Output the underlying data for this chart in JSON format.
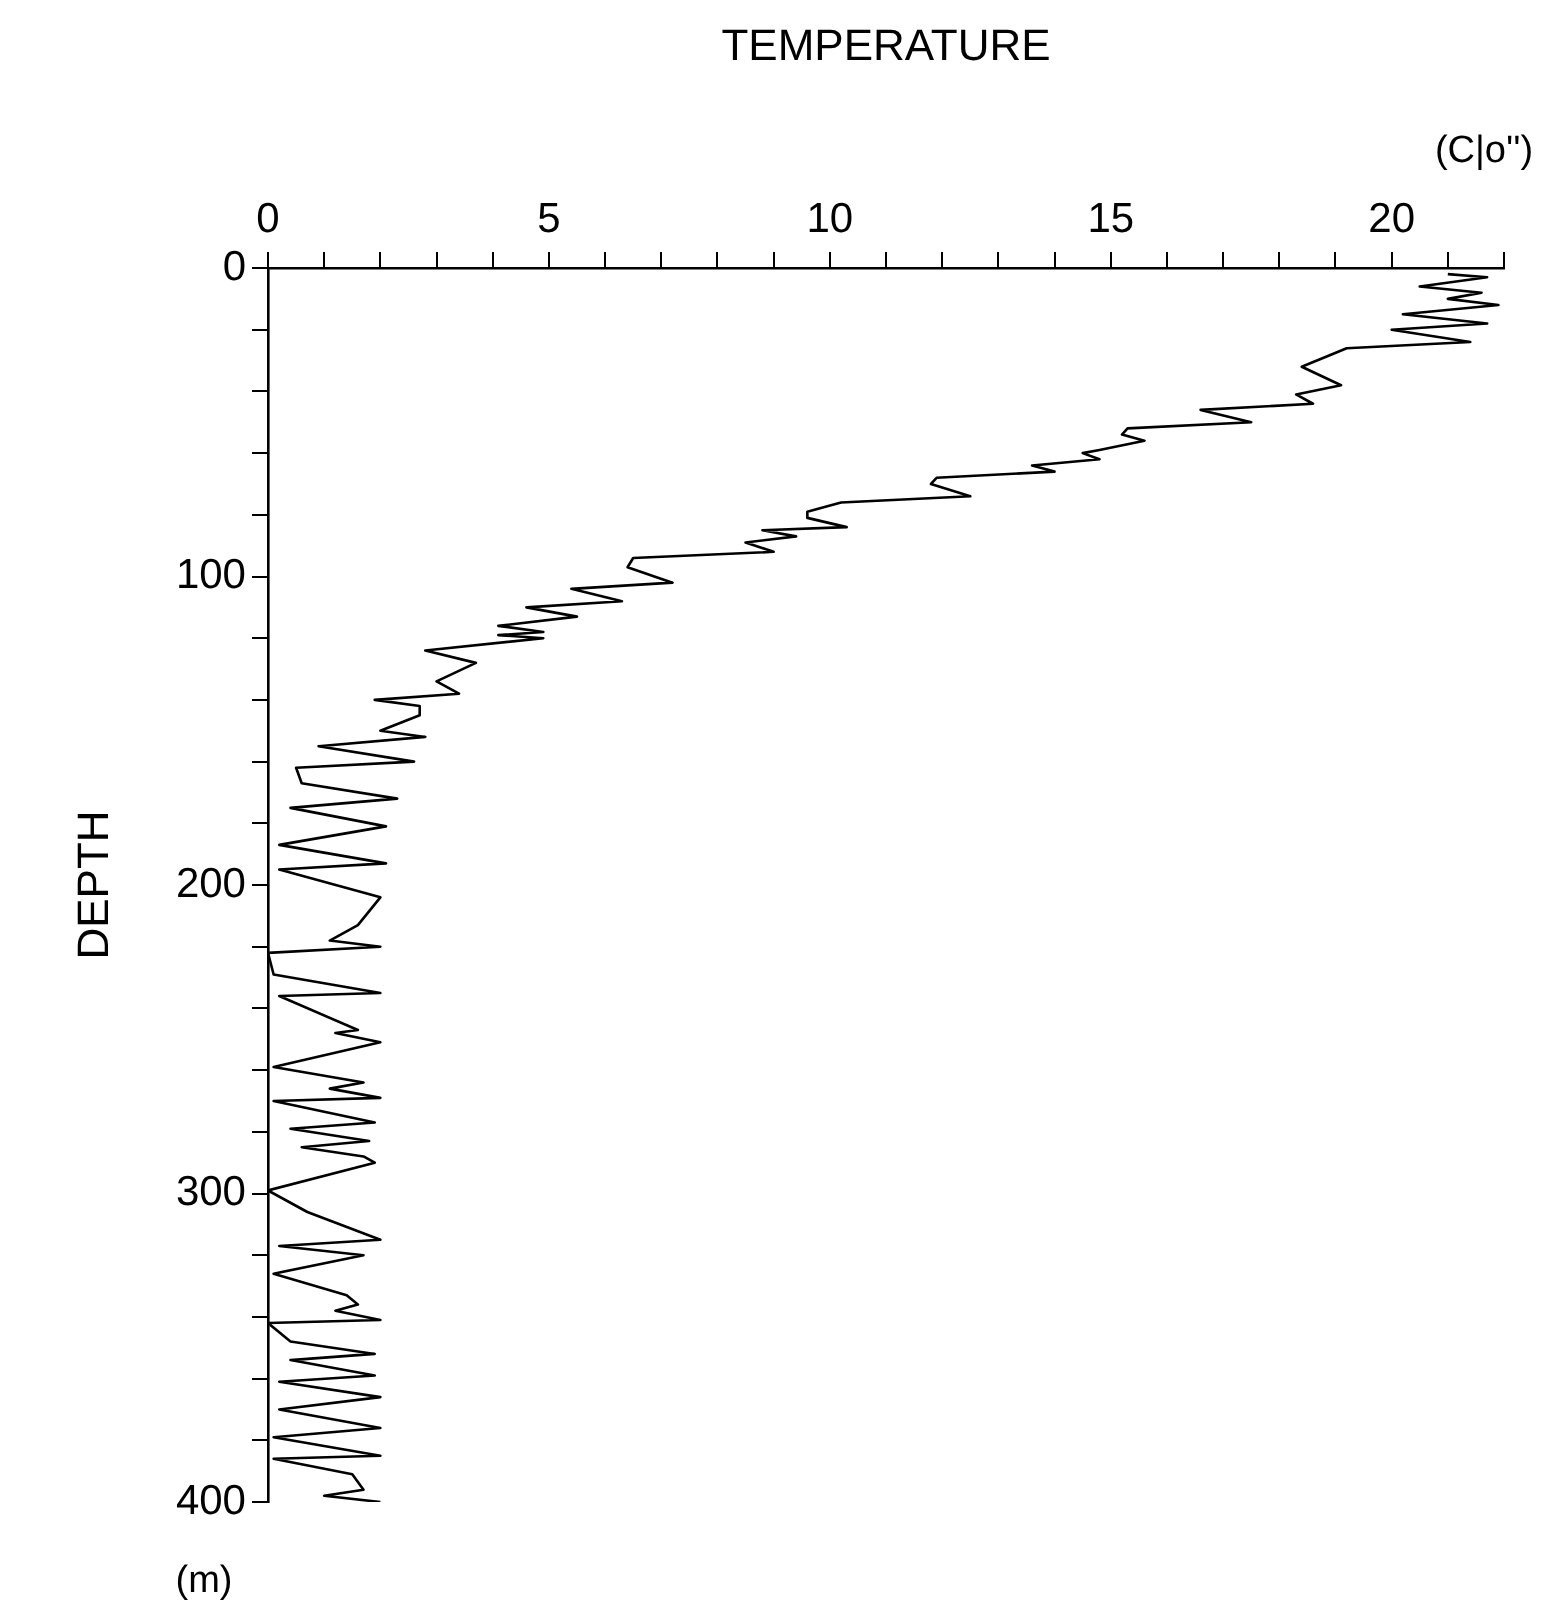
{
  "chart_data": {
    "type": "line",
    "xlabel": "TEMPERATURE",
    "ylabel": "DEPTH",
    "annotations": [
      "(C|o'')",
      "(m)"
    ],
    "xlim": [
      0,
      22
    ],
    "xticks": [
      0,
      {
        "value": 1,
        "label": null
      },
      {
        "value": 2,
        "label": null
      },
      {
        "value": 3,
        "label": null
      },
      {
        "value": 4,
        "label": null
      },
      5,
      {
        "value": 6,
        "label": null
      },
      {
        "value": 7,
        "label": null
      },
      {
        "value": 8,
        "label": null
      },
      {
        "value": 9,
        "label": null
      },
      10,
      {
        "value": 11,
        "label": null
      },
      {
        "value": 12,
        "label": null
      },
      {
        "value": 13,
        "label": null
      },
      {
        "value": 14,
        "label": null
      },
      15,
      {
        "value": 16,
        "label": null
      },
      {
        "value": 17,
        "label": null
      },
      {
        "value": 18,
        "label": null
      },
      {
        "value": 19,
        "label": null
      },
      20,
      {
        "value": 21,
        "label": null
      },
      {
        "value": 22,
        "label": null
      }
    ],
    "ylim": [
      400,
      0
    ],
    "yticks": [
      0,
      {
        "value": 20,
        "label": null
      },
      {
        "value": 40,
        "label": null
      },
      {
        "value": 60,
        "label": null
      },
      {
        "value": 80,
        "label": null
      },
      100,
      {
        "value": 120,
        "label": null
      },
      {
        "value": 140,
        "label": null
      },
      {
        "value": 160,
        "label": null
      },
      {
        "value": 180,
        "label": null
      },
      200,
      {
        "value": 220,
        "label": null
      },
      {
        "value": 240,
        "label": null
      },
      {
        "value": 260,
        "label": null
      },
      {
        "value": 280,
        "label": null
      },
      300,
      {
        "value": 320,
        "label": null
      },
      {
        "value": 340,
        "label": null
      },
      {
        "value": 360,
        "label": null
      },
      {
        "value": 380,
        "label": null
      },
      400
    ],
    "grid": false,
    "legend": false,
    "marker": "none",
    "line_style": "solid",
    "series": [
      {
        "color": "#000000",
        "x": [
          21.0,
          21.7,
          20.5,
          21.6,
          21.0,
          21.9,
          20.2,
          21.7,
          20.0,
          21.4,
          19.2,
          18.4,
          19.1,
          18.3,
          18.6,
          16.6,
          17.5,
          15.3,
          15.2,
          15.6,
          14.8,
          14.5,
          14.8,
          13.6,
          14.0,
          11.9,
          11.8,
          12.5,
          10.2,
          9.6,
          9.6,
          10.3,
          8.8,
          9.4,
          8.5,
          9.0,
          6.5,
          6.4,
          7.2,
          5.4,
          6.3,
          4.6,
          5.5,
          4.1,
          4.9,
          4.1,
          4.9,
          2.8,
          3.7,
          3.0,
          3.4,
          1.9,
          2.7,
          2.7,
          2.0,
          2.8,
          0.9,
          2.6,
          0.5,
          0.6,
          2.3,
          0.4,
          2.1,
          0.2,
          2.1,
          0.2,
          2.0,
          1.6,
          1.1,
          2.0,
          0.0,
          0.1,
          2.0,
          0.2,
          1.6,
          1.2,
          2.0,
          0.1,
          1.7,
          1.1,
          2.0,
          0.1,
          1.9,
          0.4,
          1.8,
          0.6,
          1.7,
          1.9,
          0.0,
          0.7,
          2.0,
          0.2,
          1.7,
          0.1,
          1.4,
          1.6,
          1.2,
          2.0,
          0.0,
          0.4,
          1.9,
          0.4,
          1.9,
          0.2,
          2.0,
          0.2,
          2.0,
          0.1,
          2.0,
          0.1,
          1.5,
          1.7,
          1.0,
          2.0
        ],
        "values": [
          2,
          3,
          6,
          8,
          10,
          12,
          15,
          18,
          20,
          24,
          26,
          32,
          38,
          41,
          44,
          46,
          50,
          52,
          54,
          56,
          59,
          60,
          62,
          64,
          66,
          68,
          70,
          74,
          76,
          79,
          81,
          84,
          85,
          87,
          89,
          92,
          94,
          97,
          102,
          104,
          108,
          110,
          113,
          116,
          118,
          119,
          120,
          124,
          128,
          134,
          138,
          140,
          142,
          145,
          150,
          152,
          155,
          160,
          162,
          167,
          172,
          175,
          181,
          187,
          193,
          195,
          204,
          213,
          218,
          220,
          222,
          229,
          235,
          236,
          247,
          248,
          251,
          259,
          264,
          266,
          269,
          270,
          277,
          279,
          283,
          285,
          288,
          290,
          299,
          306,
          315,
          317,
          320,
          326,
          333,
          336,
          338,
          341,
          342,
          348,
          352,
          354,
          359,
          361,
          366,
          370,
          376,
          379,
          385,
          386,
          391,
          396,
          398,
          400
        ]
      }
    ]
  }
}
